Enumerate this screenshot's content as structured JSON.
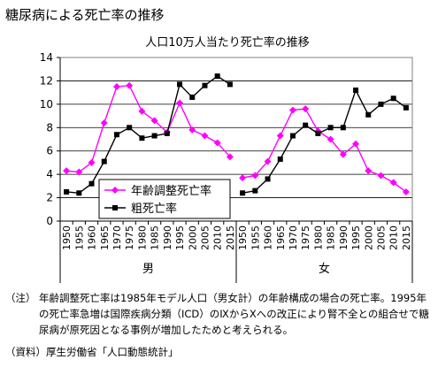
{
  "page_title": "糖尿病による死亡率の推移",
  "chart_data": {
    "type": "line",
    "title": "人口10万人当たり死亡率の推移",
    "xlabel": "",
    "ylabel": "",
    "ylim": [
      0,
      14
    ],
    "yticks": [
      0,
      2,
      4,
      6,
      8,
      10,
      12,
      14
    ],
    "grid": true,
    "legend_position": "lower-left",
    "groups": [
      "男",
      "女"
    ],
    "categories": [
      "1950",
      "1955",
      "1960",
      "1965",
      "1970",
      "1975",
      "1980",
      "1985",
      "1990",
      "1995",
      "2000",
      "2005",
      "2010",
      "2015"
    ],
    "series": [
      {
        "name": "年齢調整死亡率",
        "color": "#ff00ff",
        "marker": "diamond",
        "values": {
          "男": [
            4.3,
            4.2,
            5.0,
            8.4,
            11.5,
            11.6,
            9.4,
            8.6,
            7.6,
            10.1,
            7.8,
            7.3,
            6.7,
            5.5
          ],
          "女": [
            3.7,
            3.9,
            5.1,
            7.3,
            9.5,
            9.6,
            7.7,
            7.0,
            5.7,
            6.6,
            4.3,
            3.9,
            3.3,
            2.5
          ]
        }
      },
      {
        "name": "粗死亡率",
        "color": "#000000",
        "marker": "square",
        "values": {
          "男": [
            2.5,
            2.4,
            3.2,
            5.1,
            7.4,
            8.0,
            7.1,
            7.3,
            7.5,
            11.7,
            10.6,
            11.6,
            12.4,
            11.7
          ],
          "女": [
            2.4,
            2.6,
            3.6,
            5.3,
            7.3,
            8.2,
            7.5,
            8.0,
            8.0,
            11.2,
            9.1,
            10.0,
            10.5,
            9.7
          ]
        }
      }
    ]
  },
  "notes": {
    "prefix": "（注）",
    "text": "年齢調整死亡率は1985年モデル人口（男女計）の年齢構成の場合の死亡率。1995年の死亡率急増は国際疾病分類（ICD）のⅨからⅩへの改正により腎不全との組合せで糖尿病が原死因となる事例が増加したためと考えられる。",
    "source": "（資料）厚生労働省「人口動態統計」"
  }
}
